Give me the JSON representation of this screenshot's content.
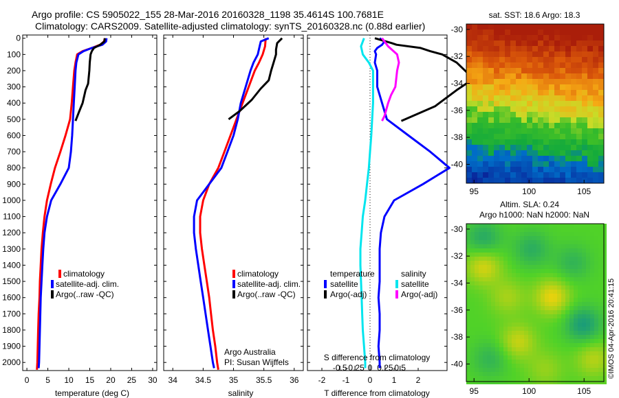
{
  "header": {
    "line1": "Argo profile: CS 5905022_155 28-Mar-2016 20160328_1198 35.4614S 100.7681E",
    "line2": "Climatology: CARS2009. Satellite-adjusted climatology: synTS_20160328.nc (0.88d earlier)"
  },
  "colors": {
    "climatology": "#ff0000",
    "satellite": "#0000ff",
    "argo": "#000000",
    "salinity_satellite": "#00e5ee",
    "salinity_argo": "#ff00ff"
  },
  "chart_data": [
    {
      "type": "line",
      "xlabel": "temperature (deg C)",
      "ylabel": "",
      "xlim": [
        -1,
        31
      ],
      "ylim": [
        2070,
        0
      ],
      "x_ticks": [
        "0",
        "5",
        "10",
        "15",
        "20",
        "25",
        "30"
      ],
      "y_ticks": [
        "0",
        "100",
        "200",
        "300",
        "400",
        "500",
        "600",
        "700",
        "800",
        "900",
        "1000",
        "1100",
        "1200",
        "1300",
        "1400",
        "1500",
        "1600",
        "1700",
        "1800",
        "1900",
        "2000"
      ],
      "legend": [
        "climatology",
        "satellite-adj. clim.",
        "Argo(..raw -QC)"
      ],
      "series": [
        {
          "name": "climatology",
          "points": [
            [
              18.6,
              0
            ],
            [
              18.4,
              20
            ],
            [
              17.5,
              40
            ],
            [
              15.5,
              60
            ],
            [
              13.3,
              80
            ],
            [
              12.0,
              100
            ],
            [
              11.6,
              150
            ],
            [
              11.3,
              200
            ],
            [
              11.0,
              300
            ],
            [
              10.7,
              400
            ],
            [
              10.3,
              500
            ],
            [
              9.2,
              600
            ],
            [
              8.0,
              700
            ],
            [
              6.7,
              800
            ],
            [
              5.7,
              900
            ],
            [
              4.8,
              1000
            ],
            [
              4.2,
              1100
            ],
            [
              3.8,
              1200
            ],
            [
              3.5,
              1300
            ],
            [
              3.3,
              1400
            ],
            [
              3.1,
              1500
            ],
            [
              3.0,
              1600
            ],
            [
              2.8,
              1700
            ],
            [
              2.7,
              1800
            ],
            [
              2.6,
              1900
            ],
            [
              2.5,
              2000
            ],
            [
              2.4,
              2045
            ]
          ]
        },
        {
          "name": "satellite-adj. clim.",
          "points": [
            [
              19.0,
              0
            ],
            [
              18.9,
              20
            ],
            [
              18.0,
              40
            ],
            [
              15.5,
              60
            ],
            [
              13.5,
              80
            ],
            [
              12.3,
              100
            ],
            [
              11.8,
              150
            ],
            [
              11.6,
              200
            ],
            [
              11.4,
              300
            ],
            [
              11.2,
              400
            ],
            [
              11.0,
              500
            ],
            [
              10.8,
              600
            ],
            [
              10.5,
              700
            ],
            [
              10.0,
              800
            ],
            [
              8.0,
              900
            ],
            [
              5.8,
              1000
            ],
            [
              4.8,
              1100
            ],
            [
              4.2,
              1200
            ],
            [
              3.9,
              1300
            ],
            [
              3.7,
              1400
            ],
            [
              3.5,
              1500
            ],
            [
              3.3,
              1600
            ],
            [
              3.2,
              1700
            ],
            [
              3.1,
              1800
            ],
            [
              3.0,
              1900
            ],
            [
              2.9,
              2000
            ],
            [
              2.8,
              2035
            ]
          ]
        },
        {
          "name": "Argo(..raw -QC)",
          "points": [
            [
              18.6,
              0
            ],
            [
              18.5,
              20
            ],
            [
              17.5,
              40
            ],
            [
              16.0,
              60
            ],
            [
              15.5,
              80
            ],
            [
              15.2,
              100
            ],
            [
              15.0,
              150
            ],
            [
              14.9,
              200
            ],
            [
              14.6,
              280
            ],
            [
              14.0,
              320
            ],
            [
              13.3,
              400
            ],
            [
              12.5,
              450
            ],
            [
              11.6,
              510
            ]
          ]
        }
      ]
    },
    {
      "type": "line",
      "xlabel": "salinity",
      "xlim": [
        33.85,
        36.15
      ],
      "ylim": [
        2070,
        0
      ],
      "x_ticks": [
        "34",
        "34.5",
        "35",
        "35.5",
        "36"
      ],
      "legend": [
        "climatology",
        "satellite-adj. clim.",
        "Argo(..raw -QC)"
      ],
      "annotation": [
        "Argo Australia",
        "PI: Susan Wijffels"
      ],
      "series": [
        {
          "name": "climatology",
          "points": [
            [
              35.53,
              0
            ],
            [
              35.52,
              50
            ],
            [
              35.48,
              100
            ],
            [
              35.42,
              150
            ],
            [
              35.35,
              200
            ],
            [
              35.25,
              300
            ],
            [
              35.15,
              400
            ],
            [
              35.05,
              500
            ],
            [
              34.95,
              600
            ],
            [
              34.85,
              700
            ],
            [
              34.75,
              800
            ],
            [
              34.6,
              900
            ],
            [
              34.5,
              1000
            ],
            [
              34.45,
              1100
            ],
            [
              34.45,
              1200
            ],
            [
              34.48,
              1300
            ],
            [
              34.52,
              1400
            ],
            [
              34.56,
              1500
            ],
            [
              34.6,
              1600
            ],
            [
              34.63,
              1700
            ],
            [
              34.66,
              1800
            ],
            [
              34.7,
              1900
            ],
            [
              34.73,
              2000
            ],
            [
              34.75,
              2045
            ]
          ]
        },
        {
          "name": "satellite-adj. clim.",
          "points": [
            [
              35.58,
              0
            ],
            [
              35.45,
              20
            ],
            [
              35.43,
              50
            ],
            [
              35.4,
              100
            ],
            [
              35.33,
              150
            ],
            [
              35.28,
              200
            ],
            [
              35.2,
              300
            ],
            [
              35.12,
              400
            ],
            [
              35.07,
              500
            ],
            [
              35.0,
              600
            ],
            [
              34.9,
              700
            ],
            [
              34.8,
              800
            ],
            [
              34.6,
              900
            ],
            [
              34.4,
              1000
            ],
            [
              34.35,
              1100
            ],
            [
              34.35,
              1200
            ],
            [
              34.38,
              1300
            ],
            [
              34.42,
              1400
            ],
            [
              34.46,
              1500
            ],
            [
              34.5,
              1600
            ],
            [
              34.54,
              1700
            ],
            [
              34.58,
              1800
            ],
            [
              34.62,
              1900
            ],
            [
              34.66,
              2000
            ],
            [
              34.68,
              2035
            ]
          ]
        },
        {
          "name": "Argo(..raw -QC)",
          "points": [
            [
              35.8,
              0
            ],
            [
              35.72,
              30
            ],
            [
              35.7,
              70
            ],
            [
              35.7,
              100
            ],
            [
              35.66,
              150
            ],
            [
              35.62,
              200
            ],
            [
              35.58,
              260
            ],
            [
              35.45,
              310
            ],
            [
              35.3,
              380
            ],
            [
              35.1,
              450
            ],
            [
              34.92,
              500
            ]
          ]
        }
      ]
    },
    {
      "type": "line",
      "xlabel": "T difference from climatology",
      "top_label": "S difference from climatology",
      "xlim": [
        -2.6,
        3.2
      ],
      "ylim": [
        2070,
        0
      ],
      "x_ticks": [
        "-2",
        "-1",
        "0",
        "1",
        "2"
      ],
      "top_ticks": [
        "-0.5",
        "-0.25",
        "0",
        "0.25",
        "0.5"
      ],
      "legend_titles": [
        "temperature",
        "salinity"
      ],
      "legend": [
        "satellite",
        "Argo(-adj)",
        "satellite",
        "Argo(-adj)"
      ],
      "series": [
        {
          "name": "satellite",
          "points": [
            [
              0.4,
              0
            ],
            [
              0.6,
              20
            ],
            [
              0.5,
              40
            ],
            [
              0.3,
              60
            ],
            [
              0.2,
              80
            ],
            [
              0.25,
              100
            ],
            [
              0.2,
              150
            ],
            [
              0.3,
              200
            ],
            [
              0.3,
              300
            ],
            [
              0.5,
              400
            ],
            [
              0.7,
              500
            ],
            [
              1.6,
              600
            ],
            [
              2.5,
              700
            ],
            [
              3.3,
              800
            ],
            [
              2.2,
              900
            ],
            [
              1.0,
              1000
            ],
            [
              0.6,
              1100
            ],
            [
              0.45,
              1200
            ],
            [
              0.4,
              1300
            ],
            [
              0.4,
              1400
            ],
            [
              0.4,
              1500
            ],
            [
              0.35,
              1600
            ],
            [
              0.4,
              1700
            ],
            [
              0.4,
              1800
            ],
            [
              0.35,
              1900
            ],
            [
              0.4,
              2000
            ],
            [
              0.4,
              2035
            ]
          ]
        },
        {
          "name": "Argo(-adj)",
          "points": [
            [
              0.2,
              0
            ],
            [
              0.9,
              30
            ],
            [
              1.1,
              40
            ],
            [
              2.1,
              60
            ],
            [
              2.5,
              80
            ],
            [
              3.0,
              100
            ],
            [
              3.6,
              150
            ],
            [
              4.3,
              250
            ],
            [
              3.6,
              320
            ],
            [
              2.7,
              420
            ],
            [
              1.3,
              510
            ]
          ]
        },
        {
          "name": "satellite",
          "points": [
            [
              -0.1,
              0
            ],
            [
              -0.15,
              50
            ],
            [
              -0.12,
              100
            ],
            [
              -0.02,
              150
            ],
            [
              0.05,
              200
            ],
            [
              0.05,
              400
            ],
            [
              0.02,
              600
            ],
            [
              0.0,
              700
            ],
            [
              -0.02,
              800
            ],
            [
              -0.05,
              900
            ],
            [
              -0.08,
              1000
            ],
            [
              -0.12,
              1100
            ],
            [
              -0.14,
              1200
            ],
            [
              -0.16,
              1300
            ],
            [
              -0.16,
              1400
            ],
            [
              -0.15,
              1500
            ],
            [
              -0.14,
              1600
            ],
            [
              -0.13,
              1700
            ],
            [
              -0.12,
              1800
            ],
            [
              -0.1,
              1900
            ],
            [
              -0.08,
              2000
            ],
            [
              -0.08,
              2035
            ]
          ]
        },
        {
          "name": "Argo(-adj)",
          "points": [
            [
              0.2,
              0
            ],
            [
              0.3,
              50
            ],
            [
              0.45,
              100
            ],
            [
              0.48,
              150
            ],
            [
              0.45,
              200
            ],
            [
              0.42,
              300
            ],
            [
              0.35,
              350
            ],
            [
              0.3,
              400
            ],
            [
              0.24,
              480
            ],
            [
              0.2,
              510
            ]
          ]
        }
      ]
    },
    {
      "type": "heatmap",
      "title": "sat. SST: 18.6 Argo: 18.3",
      "x_ticks": [
        "95",
        "100",
        "105"
      ],
      "y_ticks": [
        "-30",
        "-32",
        "-34",
        "-36",
        "-38",
        "-40"
      ]
    },
    {
      "type": "heatmap",
      "title": "Altim. SLA: 0.24",
      "subtitle": "Argo h1000: NaN h2000: NaN",
      "x_ticks": [
        "95",
        "100",
        "105"
      ],
      "y_ticks": [
        "-30",
        "-32",
        "-34",
        "-36",
        "-38",
        "-40"
      ]
    }
  ],
  "footer": {
    "stamp": "©IMOS 04-Apr-2016 20:41:15"
  }
}
